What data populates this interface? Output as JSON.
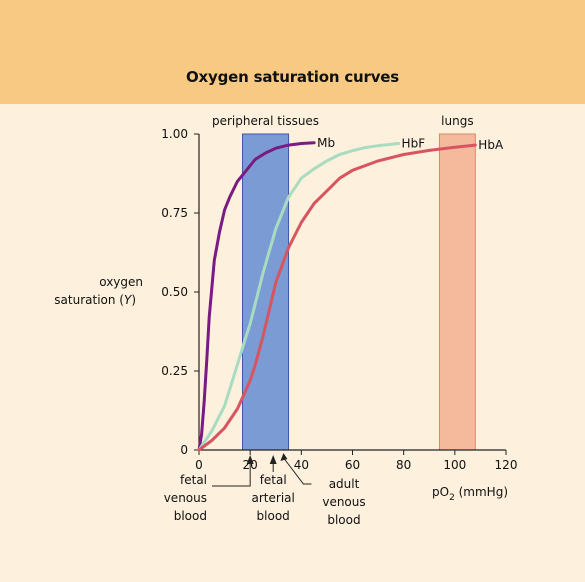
{
  "title": "Oxygen saturation curves",
  "chart_data": {
    "type": "line",
    "title": "Oxygen saturation curves",
    "ylabel_lines": [
      "oxygen",
      "saturation (",
      "Y",
      ")"
    ],
    "xlabel": {
      "main": "pO",
      "sub": "2",
      "unit": " (mmHg)"
    },
    "xlim": [
      0,
      120
    ],
    "ylim": [
      0,
      1
    ],
    "xticks": [
      0,
      20,
      40,
      60,
      80,
      100,
      120
    ],
    "yticks": [
      {
        "value": 0,
        "label": "0"
      },
      {
        "value": 0.25,
        "label": "0.25"
      },
      {
        "value": 0.5,
        "label": "0.50"
      },
      {
        "value": 0.75,
        "label": "0.75"
      },
      {
        "value": 1,
        "label": "1.00"
      }
    ],
    "regions": [
      {
        "label": "peripheral tissues",
        "x0": 17,
        "x1": 35,
        "color": "#7b9bd4",
        "stroke": "#3b5aa8"
      },
      {
        "label": "lungs",
        "x0": 94,
        "x1": 108,
        "color": "#f5b99c",
        "stroke": "#d98864"
      }
    ],
    "series": [
      {
        "name": "Mb",
        "color": "#7a1a83",
        "x": [
          0,
          1,
          2,
          3,
          4,
          6,
          8,
          10,
          12,
          15,
          18,
          22,
          26,
          30,
          35,
          40,
          45
        ],
        "y": [
          0,
          0.05,
          0.15,
          0.28,
          0.42,
          0.6,
          0.69,
          0.76,
          0.8,
          0.85,
          0.88,
          0.92,
          0.94,
          0.955,
          0.965,
          0.97,
          0.972
        ]
      },
      {
        "name": "HbF",
        "color": "#a8dcc0",
        "x": [
          0,
          5,
          10,
          15,
          18,
          20,
          25,
          30,
          35,
          40,
          45,
          50,
          55,
          60,
          65,
          70,
          78
        ],
        "y": [
          0,
          0.06,
          0.14,
          0.27,
          0.35,
          0.4,
          0.56,
          0.7,
          0.8,
          0.86,
          0.89,
          0.915,
          0.935,
          0.947,
          0.957,
          0.963,
          0.97
        ]
      },
      {
        "name": "HbA",
        "color": "#d75560",
        "x": [
          0,
          5,
          10,
          15,
          20,
          22,
          25,
          28,
          30,
          35,
          40,
          45,
          50,
          55,
          60,
          70,
          80,
          90,
          100,
          108
        ],
        "y": [
          0,
          0.03,
          0.07,
          0.13,
          0.22,
          0.27,
          0.36,
          0.46,
          0.53,
          0.64,
          0.72,
          0.78,
          0.82,
          0.86,
          0.885,
          0.915,
          0.935,
          0.948,
          0.958,
          0.965
        ]
      }
    ],
    "annotations": [
      {
        "lines": [
          "fetal",
          "venous",
          "blood"
        ],
        "x": 20
      },
      {
        "lines": [
          "fetal",
          "arterial",
          "blood"
        ],
        "x": 29
      },
      {
        "lines": [
          "adult",
          "venous",
          "blood"
        ],
        "x": 33
      }
    ]
  }
}
